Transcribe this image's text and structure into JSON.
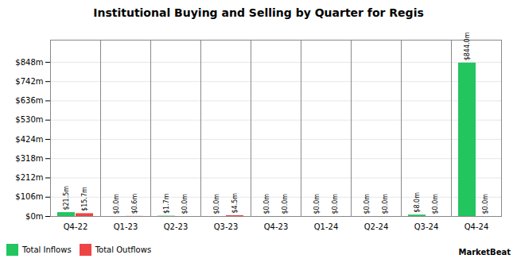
{
  "chart_data": {
    "type": "bar",
    "title": "Institutional Buying and Selling by Quarter for Regis",
    "categories": [
      "Q4-22",
      "Q1-23",
      "Q2-23",
      "Q3-23",
      "Q4-23",
      "Q1-24",
      "Q2-24",
      "Q3-24",
      "Q4-24"
    ],
    "series": [
      {
        "name": "Total Inflows",
        "color": "#22c55e",
        "values": [
          21.5,
          0.0,
          1.7,
          0.0,
          0.0,
          0.0,
          0.0,
          8.0,
          844.0
        ],
        "value_labels": [
          "$21.5m",
          "$0.0m",
          "$1.7m",
          "$0.0m",
          "$0.0m",
          "$0.0m",
          "$0.0m",
          "$8.0m",
          "$844.0m"
        ]
      },
      {
        "name": "Total Outflows",
        "color": "#ef4444",
        "values": [
          15.7,
          0.6,
          0.0,
          4.5,
          0.0,
          0.0,
          0.0,
          0.0,
          0.0
        ],
        "value_labels": [
          "$15.7m",
          "$0.6m",
          "$0.0m",
          "$4.5m",
          "$0.0m",
          "$0.0m",
          "$0.0m",
          "$0.0m",
          "$0.0m"
        ]
      }
    ],
    "ylim": [
      0,
      970
    ],
    "yticks": [
      {
        "value": 0,
        "label": "$0m"
      },
      {
        "value": 106,
        "label": "$106m"
      },
      {
        "value": 212,
        "label": "$212m"
      },
      {
        "value": 318,
        "label": "$318m"
      },
      {
        "value": 424,
        "label": "$424m"
      },
      {
        "value": 530,
        "label": "$530m"
      },
      {
        "value": 636,
        "label": "$636m"
      },
      {
        "value": 742,
        "label": "$742m"
      },
      {
        "value": 848,
        "label": "$848m"
      }
    ],
    "grid": true,
    "legend": "lower left",
    "data_labels": true,
    "annotations": [
      "MarketBeat"
    ]
  }
}
